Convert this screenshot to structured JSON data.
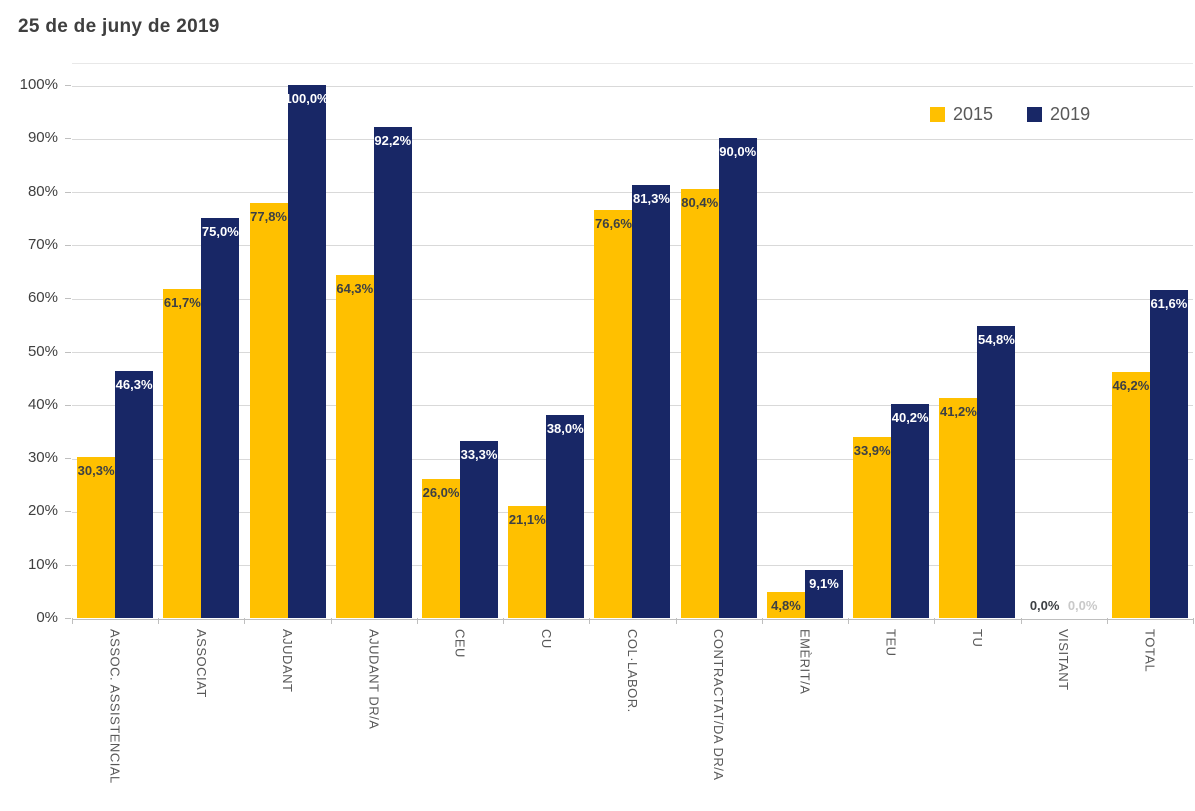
{
  "page": {
    "title": "25 de de juny de 2019"
  },
  "legend": {
    "items": [
      {
        "label": "2015",
        "color": "#FFC000"
      },
      {
        "label": "2019",
        "color": "#182766"
      }
    ]
  },
  "chart_data": {
    "type": "bar",
    "title": "25 de de juny de 2019",
    "categories": [
      "ASSOC. ASSISTENCIAL",
      "ASSOCIAT",
      "AJUDANT",
      "AJUDANT DR/A",
      "CEU",
      "CU",
      "COL·LABOR.",
      "CONTRACTAT/DA DR/A",
      "EMÈRIT/A",
      "TEU",
      "TU",
      "VISITANT",
      "TOTAL"
    ],
    "series": [
      {
        "name": "2015",
        "color": "#FFC000",
        "values": [
          30.3,
          61.7,
          77.8,
          64.3,
          26.0,
          21.1,
          76.6,
          80.4,
          4.8,
          33.9,
          41.2,
          0.0,
          46.2
        ],
        "labels": [
          "30,3%",
          "61,7%",
          "77,8%",
          "64,3%",
          "26,0%",
          "21,1%",
          "76,6%",
          "80,4%",
          "4,8%",
          "33,9%",
          "41,2%",
          "0,0%",
          "46,2%"
        ],
        "label_color": "#3d4044",
        "zero_label_color": "#3d4044"
      },
      {
        "name": "2019",
        "color": "#182766",
        "values": [
          46.3,
          75.0,
          100.0,
          92.2,
          33.3,
          38.0,
          81.3,
          90.0,
          9.1,
          40.2,
          54.8,
          0.0,
          61.6
        ],
        "labels": [
          "46,3%",
          "75,0%",
          "100,0%",
          "92,2%",
          "33,3%",
          "38,0%",
          "81,3%",
          "90,0%",
          "9,1%",
          "40,2%",
          "54,8%",
          "0,0%",
          "61,6%"
        ],
        "label_color": "#ffffff",
        "zero_label_color": "#c9c9c9"
      }
    ],
    "ylim": [
      0,
      100
    ],
    "yticks": [
      "0%",
      "10%",
      "20%",
      "30%",
      "40%",
      "50%",
      "60%",
      "70%",
      "80%",
      "90%",
      "100%"
    ],
    "grid": true,
    "legend_position": "top-right",
    "colors": {
      "gridline": "#d9d9d9",
      "axis": "#bfbfbf",
      "ytick_text": "#404040",
      "xtick_text": "#595959"
    }
  }
}
